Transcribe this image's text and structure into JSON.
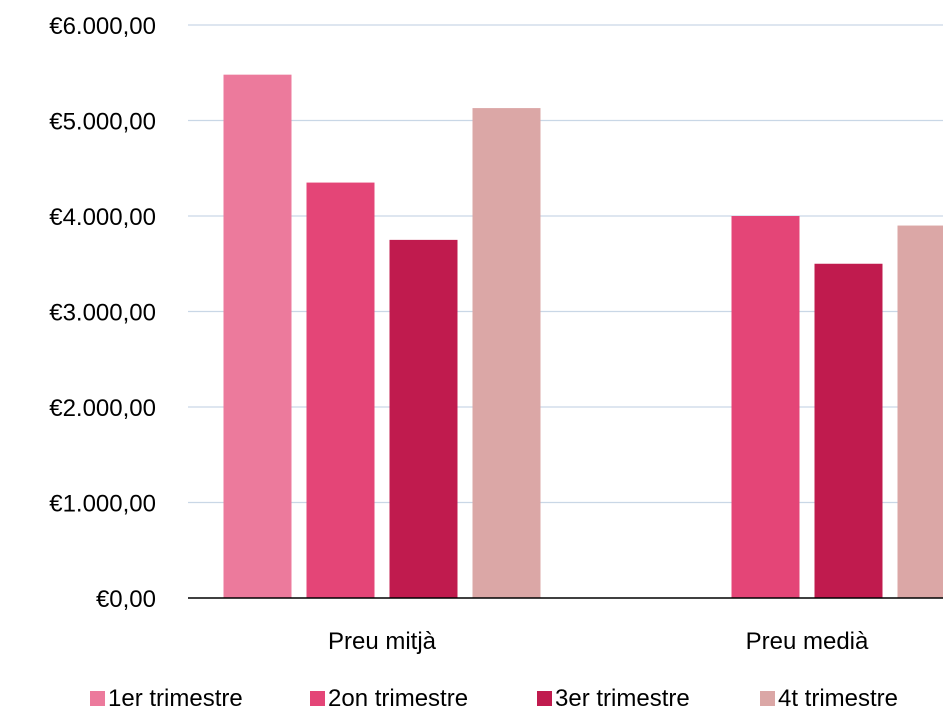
{
  "chart_data": {
    "type": "bar",
    "categories": [
      "Preu mitjà",
      "Preu medià"
    ],
    "series": [
      {
        "name": "1er trimestre",
        "values": [
          5480,
          null
        ],
        "color": "#EC7A9C"
      },
      {
        "name": "2on trimestre",
        "values": [
          4350,
          4000
        ],
        "color": "#E44577"
      },
      {
        "name": "3er trimestre",
        "values": [
          3750,
          3500
        ],
        "color": "#C01B4E"
      },
      {
        "name": "4t trimestre",
        "values": [
          5130,
          3900
        ],
        "color": "#DBA7A6"
      }
    ],
    "title": "",
    "xlabel": "",
    "ylabel": "",
    "ylim": [
      0,
      6000
    ],
    "yticks": [
      0,
      1000,
      2000,
      3000,
      4000,
      5000,
      6000
    ],
    "ytick_labels": [
      "€0,00",
      "€1.000,00",
      "€2.000,00",
      "€3.000,00",
      "€4.000,00",
      "€5.000,00",
      "€6.000,00"
    ],
    "grid": true,
    "gridline_color": "#C9D7E6",
    "legend": "bottom"
  }
}
